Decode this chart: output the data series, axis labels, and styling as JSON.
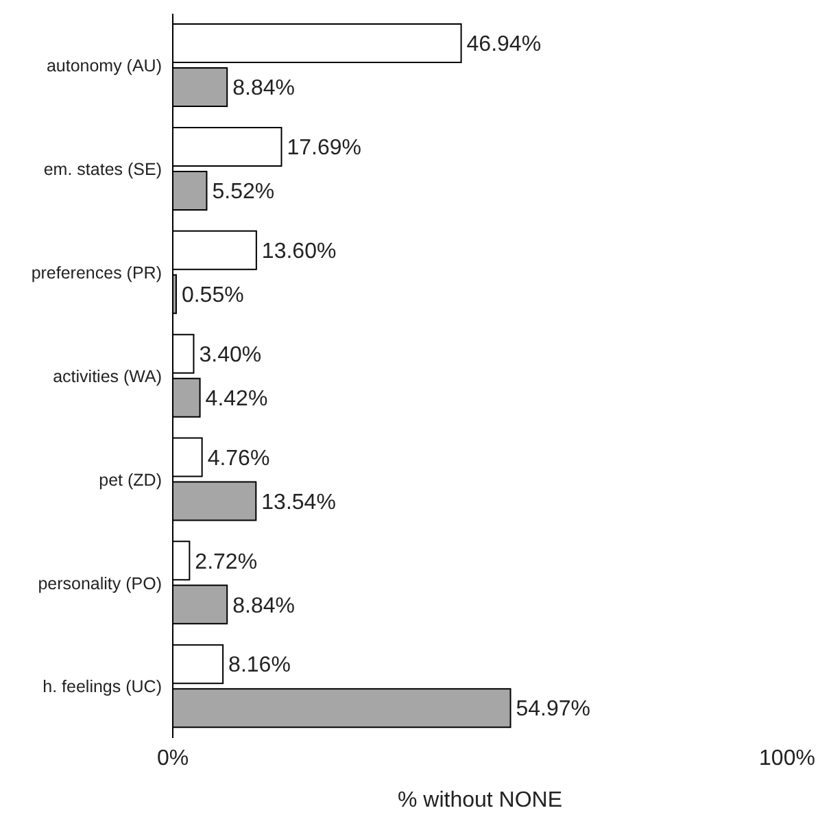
{
  "chart_data": {
    "type": "bar",
    "orientation": "horizontal",
    "categories": [
      "autonomy (AU)",
      "em. states (SE)",
      "preferences (PR)",
      "activities (WA)",
      "pet (ZD)",
      "personality (PO)",
      "h. feelings (UC)"
    ],
    "series": [
      {
        "color": "#ffffff",
        "values": [
          46.94,
          17.69,
          13.6,
          3.4,
          4.76,
          2.72,
          8.16
        ],
        "value_labels": [
          "46.94%",
          "17.69%",
          "13.60%",
          "3.40%",
          "4.76%",
          "2.72%",
          "8.16%"
        ]
      },
      {
        "color": "#a6a6a6",
        "values": [
          8.84,
          5.52,
          0.55,
          4.42,
          13.54,
          8.84,
          54.97
        ],
        "value_labels": [
          "8.84%",
          "5.52%",
          "0.55%",
          "4.42%",
          "13.54%",
          "8.84%",
          "54.97%"
        ]
      }
    ],
    "xlim": [
      0,
      100
    ],
    "xticks": [
      {
        "value": 0,
        "label": "0%"
      },
      {
        "value": 100,
        "label": "100%"
      }
    ],
    "xlabel": "% without NONE",
    "grid": false,
    "legend": false
  }
}
